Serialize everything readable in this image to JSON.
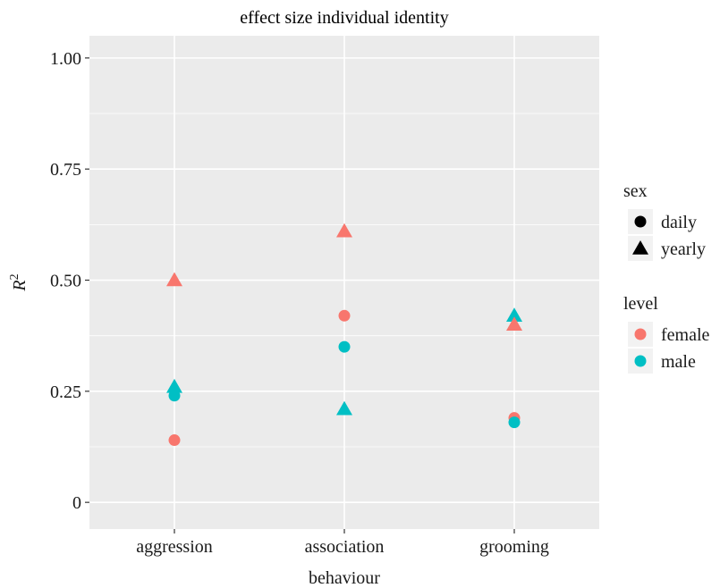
{
  "chart_data": {
    "type": "scatter",
    "title": "effect size individual identity",
    "xlabel": "behaviour",
    "ylabel": "R",
    "ylabel_superscript": "2",
    "categories": [
      "aggression",
      "association",
      "grooming"
    ],
    "ylim": [
      -0.06,
      1.05
    ],
    "yticks": [
      0,
      0.25,
      0.5,
      0.75,
      1.0
    ],
    "ytick_labels": [
      "0",
      "0.25",
      "0.50",
      "0.75",
      "1.00"
    ],
    "points": [
      {
        "category": "aggression",
        "y": 0.14,
        "sex": "daily",
        "level": "female"
      },
      {
        "category": "aggression",
        "y": 0.24,
        "sex": "daily",
        "level": "male"
      },
      {
        "category": "aggression",
        "y": 0.26,
        "sex": "yearly",
        "level": "male"
      },
      {
        "category": "aggression",
        "y": 0.5,
        "sex": "yearly",
        "level": "female"
      },
      {
        "category": "association",
        "y": 0.42,
        "sex": "daily",
        "level": "female"
      },
      {
        "category": "association",
        "y": 0.35,
        "sex": "daily",
        "level": "male"
      },
      {
        "category": "association",
        "y": 0.21,
        "sex": "yearly",
        "level": "male"
      },
      {
        "category": "association",
        "y": 0.61,
        "sex": "yearly",
        "level": "female"
      },
      {
        "category": "grooming",
        "y": 0.19,
        "sex": "daily",
        "level": "female"
      },
      {
        "category": "grooming",
        "y": 0.18,
        "sex": "daily",
        "level": "male"
      },
      {
        "category": "grooming",
        "y": 0.42,
        "sex": "yearly",
        "level": "male"
      },
      {
        "category": "grooming",
        "y": 0.4,
        "sex": "yearly",
        "level": "female"
      }
    ],
    "legends": [
      {
        "title": "sex",
        "entries": [
          {
            "label": "daily",
            "shape": "circle"
          },
          {
            "label": "yearly",
            "shape": "triangle"
          }
        ]
      },
      {
        "title": "level",
        "entries": [
          {
            "label": "female",
            "color": "#F8766D"
          },
          {
            "label": "male",
            "color": "#00BFC4"
          }
        ]
      }
    ],
    "colors": {
      "female": "#F8766D",
      "male": "#00BFC4",
      "panel": "#EBEBEB",
      "grid": "#FFFFFF"
    },
    "legend_position": "right",
    "grid": true
  }
}
